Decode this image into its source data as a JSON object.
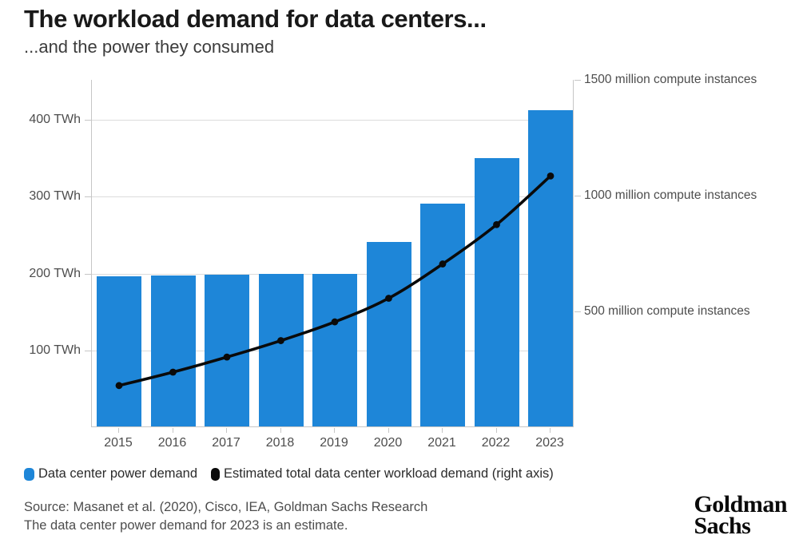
{
  "header": {
    "title": "The workload demand for data centers...",
    "subtitle": "...and the power they consumed"
  },
  "chart_data": {
    "type": "bar",
    "subtype": "bar + line dual axis",
    "categories": [
      "2015",
      "2016",
      "2017",
      "2018",
      "2019",
      "2020",
      "2021",
      "2022",
      "2023"
    ],
    "series": [
      {
        "name": "Data center power demand",
        "type": "bar",
        "axis": "left",
        "color": "#1e86d8",
        "values": [
          195,
          196,
          197,
          198,
          199,
          240,
          290,
          349,
          411
        ]
      },
      {
        "name": "Estimated total data center workload demand (right axis)",
        "type": "line",
        "axis": "right",
        "color": "#0a0a0a",
        "values": [
          180,
          238,
          303,
          374,
          455,
          557,
          705,
          875,
          1085
        ]
      }
    ],
    "left_axis": {
      "unit": "TWh",
      "ticks": [
        100,
        200,
        300,
        400
      ],
      "tick_labels": [
        "100 TWh",
        "200 TWh",
        "300 TWh",
        "400 TWh"
      ],
      "range": [
        0,
        452
      ]
    },
    "right_axis": {
      "unit": "million compute instances",
      "ticks": [
        500,
        1000,
        1500
      ],
      "tick_labels": [
        "500 million compute instances",
        "1000 million compute instances",
        "1500 million compute instances"
      ],
      "range": [
        0,
        1500
      ]
    },
    "grid": "horizontal gridlines at left-axis ticks",
    "legend_position": "bottom-left",
    "title": "The workload demand for data centers...",
    "subtitle": "...and the power they consumed"
  },
  "legend": {
    "items": [
      {
        "label": "Data center power demand",
        "color": "#1e86d8"
      },
      {
        "label": "Estimated total data center workload demand (right axis)",
        "color": "#0a0a0a"
      }
    ]
  },
  "footer": {
    "source_line1": "Source: Masanet et al. (2020), Cisco, IEA, Goldman Sachs Research",
    "source_line2": "The data center power demand for 2023 is an estimate.",
    "logo_line1": "Goldman",
    "logo_line2": "Sachs"
  },
  "colors": {
    "bar_blue": "#1e86d8",
    "line_black": "#0a0a0a",
    "gridline_gray": "#dcdcdc",
    "axis_gray": "#c6c6c6",
    "text_gray": "#4d4d4d"
  }
}
